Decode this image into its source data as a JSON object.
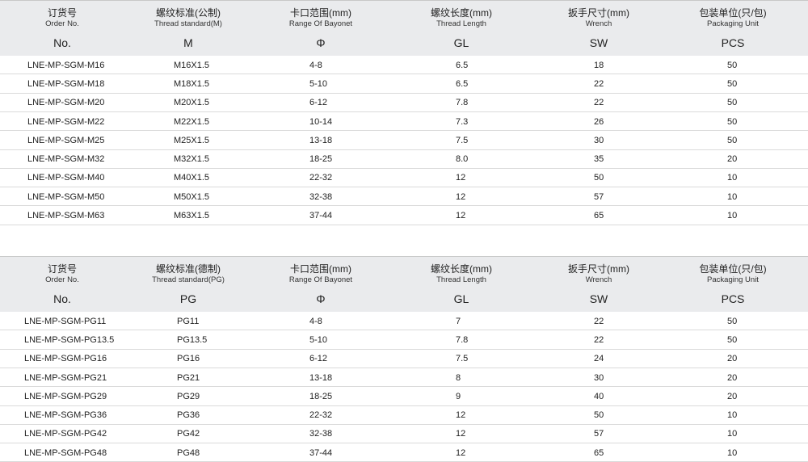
{
  "tables": [
    {
      "header": [
        {
          "zh": "订货号",
          "en": "Order No.",
          "symbol": "No."
        },
        {
          "zh": "螺纹标准(公制)",
          "en": "Thread standard(M)",
          "symbol": "M"
        },
        {
          "zh": "卡口范围(mm)",
          "en": "Range Of Bayonet",
          "symbol": "Φ"
        },
        {
          "zh": "螺纹长度(mm)",
          "en": "Thread Length",
          "symbol": "GL"
        },
        {
          "zh": "扳手尺寸(mm)",
          "en": "Wrench",
          "symbol": "SW"
        },
        {
          "zh": "包装单位(只/包)",
          "en": "Packaging Unit",
          "symbol": "PCS"
        }
      ],
      "rows": [
        [
          "LNE-MP-SGM-M16",
          "M16X1.5",
          "4-8",
          "6.5",
          "18",
          "50"
        ],
        [
          "LNE-MP-SGM-M18",
          "M18X1.5",
          "5-10",
          "6.5",
          "22",
          "50"
        ],
        [
          "LNE-MP-SGM-M20",
          "M20X1.5",
          "6-12",
          "7.8",
          "22",
          "50"
        ],
        [
          "LNE-MP-SGM-M22",
          "M22X1.5",
          "10-14",
          "7.3",
          "26",
          "50"
        ],
        [
          "LNE-MP-SGM-M25",
          "M25X1.5",
          "13-18",
          "7.5",
          "30",
          "50"
        ],
        [
          "LNE-MP-SGM-M32",
          "M32X1.5",
          "18-25",
          "8.0",
          "35",
          "20"
        ],
        [
          "LNE-MP-SGM-M40",
          "M40X1.5",
          "22-32",
          "12",
          "50",
          "10"
        ],
        [
          "LNE-MP-SGM-M50",
          "M50X1.5",
          "32-38",
          "12",
          "57",
          "10"
        ],
        [
          "LNE-MP-SGM-M63",
          "M63X1.5",
          "37-44",
          "12",
          "65",
          "10"
        ]
      ]
    },
    {
      "header": [
        {
          "zh": "订货号",
          "en": "Order No.",
          "symbol": "No."
        },
        {
          "zh": "螺纹标准(德制)",
          "en": "Thread standard(PG)",
          "symbol": "PG"
        },
        {
          "zh": "卡口范围(mm)",
          "en": "Range Of Bayonet",
          "symbol": "Φ"
        },
        {
          "zh": "螺纹长度(mm)",
          "en": "Thread Length",
          "symbol": "GL"
        },
        {
          "zh": "扳手尺寸(mm)",
          "en": "Wrench",
          "symbol": "SW"
        },
        {
          "zh": "包装单位(只/包)",
          "en": "Packaging Unit",
          "symbol": "PCS"
        }
      ],
      "rows": [
        [
          "LNE-MP-SGM-PG11",
          "PG11",
          "4-8",
          "7",
          "22",
          "50"
        ],
        [
          "LNE-MP-SGM-PG13.5",
          "PG13.5",
          "5-10",
          "7.8",
          "22",
          "50"
        ],
        [
          "LNE-MP-SGM-PG16",
          "PG16",
          "6-12",
          "7.5",
          "24",
          "20"
        ],
        [
          "LNE-MP-SGM-PG21",
          "PG21",
          "13-18",
          "8",
          "30",
          "20"
        ],
        [
          "LNE-MP-SGM-PG29",
          "PG29",
          "18-25",
          "9",
          "40",
          "20"
        ],
        [
          "LNE-MP-SGM-PG36",
          "PG36",
          "22-32",
          "12",
          "50",
          "10"
        ],
        [
          "LNE-MP-SGM-PG42",
          "PG42",
          "32-38",
          "12",
          "57",
          "10"
        ],
        [
          "LNE-MP-SGM-PG48",
          "PG48",
          "37-44",
          "12",
          "65",
          "10"
        ]
      ]
    }
  ]
}
